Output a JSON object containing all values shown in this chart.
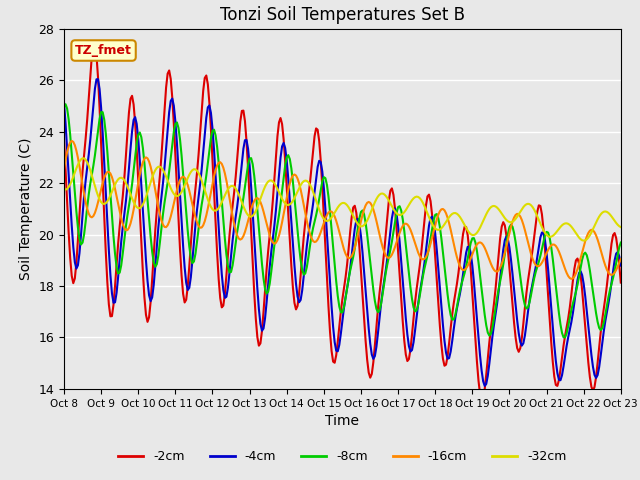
{
  "title": "Tonzi Soil Temperatures Set B",
  "xlabel": "Time",
  "ylabel": "Soil Temperature (C)",
  "ylim": [
    14,
    28
  ],
  "xlim": [
    0,
    360
  ],
  "plot_bg_color": "#e8e8e8",
  "annotation_text": "TZ_fmet",
  "annotation_bg": "#ffffcc",
  "annotation_border": "#cc8800",
  "series_colors": [
    "#dd0000",
    "#0000cc",
    "#00cc00",
    "#ff8800",
    "#dddd00"
  ],
  "series_linewidth": 1.5,
  "tick_labels": [
    "Oct 8",
    "Oct 9",
    "Oct 10",
    "Oct 11",
    "Oct 12",
    "Oct 13",
    "Oct 14",
    "Oct 15",
    "Oct 16",
    "Oct 17",
    "Oct 18",
    "Oct 19",
    "Oct 20",
    "Oct 21",
    "Oct 22",
    "Oct 23"
  ],
  "tick_positions": [
    0,
    24,
    48,
    72,
    96,
    120,
    144,
    168,
    192,
    216,
    240,
    264,
    288,
    312,
    336,
    360
  ],
  "yticks": [
    14,
    16,
    18,
    20,
    22,
    24,
    26,
    28
  ],
  "grid_color": "#ffffff",
  "legend_labels": [
    "-2cm",
    "-4cm",
    "-8cm",
    "-16cm",
    "-32cm"
  ],
  "legend_colors": [
    "#dd0000",
    "#0000cc",
    "#00cc00",
    "#ff8800",
    "#dddd00"
  ]
}
